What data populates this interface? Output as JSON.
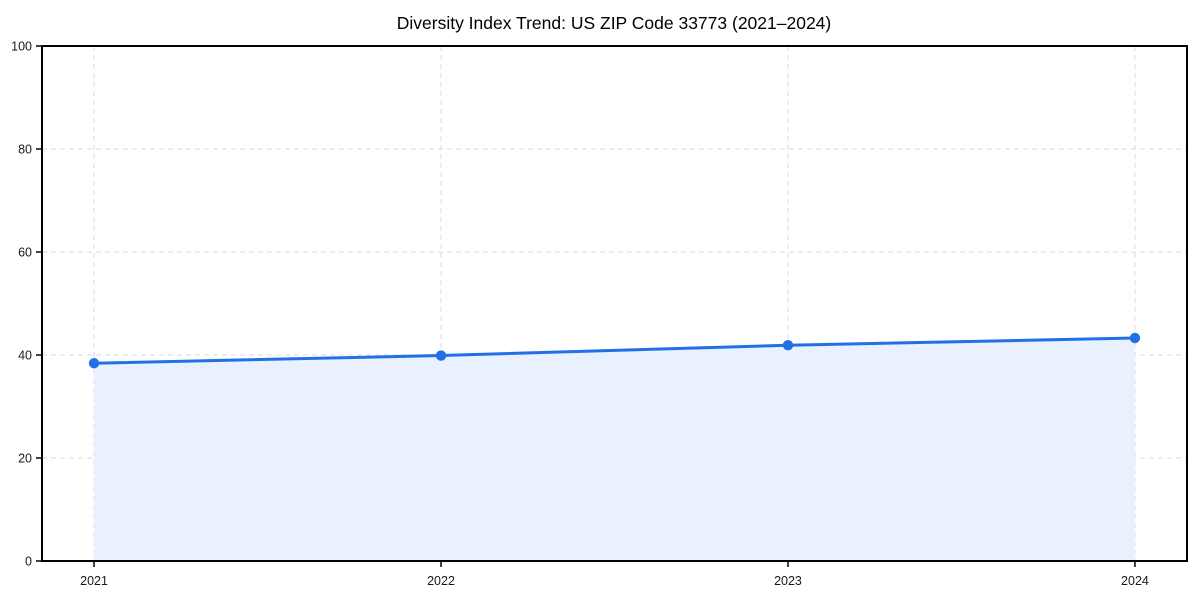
{
  "chart_data": {
    "type": "area",
    "title": "Diversity Index Trend: US ZIP Code 33773 (2021–2024)",
    "xlabel": "",
    "ylabel": "",
    "x": [
      "2021",
      "2022",
      "2023",
      "2024"
    ],
    "series": [
      {
        "name": "Diversity Index",
        "values": [
          38.4,
          39.9,
          41.9,
          43.3
        ]
      }
    ],
    "ylim": [
      0,
      100
    ],
    "yticks": [
      0,
      20,
      40,
      60,
      80,
      100
    ],
    "grid": true,
    "grid_style": "dashed",
    "legend_position": "none",
    "colors": {
      "line": "#2270e8",
      "marker": "#2270e8",
      "fill": "#e8f1fd",
      "grid": "#e1e1e1",
      "spine": "#000000",
      "text": "#1a1a1a",
      "background": "#ffffff"
    }
  }
}
